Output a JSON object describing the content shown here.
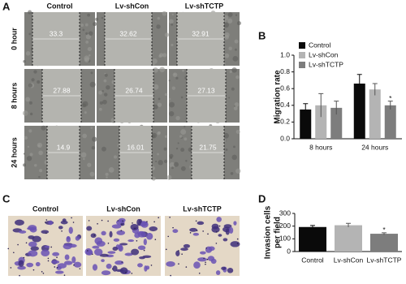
{
  "panel_a": {
    "label": "A",
    "columns": [
      "Control",
      "Lv-shCon",
      "Lv-shTCTP"
    ],
    "rows": [
      "0 hour",
      "8 hours",
      "24 hours"
    ],
    "widths": [
      [
        33.3,
        32.62,
        32.91
      ],
      [
        27.88,
        26.74,
        27.13
      ],
      [
        14.9,
        16.01,
        21.75
      ]
    ]
  },
  "panel_c": {
    "label": "C",
    "columns": [
      "Control",
      "Lv-shCon",
      "Lv-shTCTP"
    ]
  },
  "chart_data": [
    {
      "type": "bar",
      "panel_label": "B",
      "ylabel": "Migration rate",
      "categories": [
        "8 hours",
        "24 hours"
      ],
      "series": [
        {
          "name": "Control",
          "color": "#0a0a0a",
          "values": [
            0.35,
            0.66
          ],
          "errors": [
            0.07,
            0.11
          ]
        },
        {
          "name": "Lv-shCon",
          "color": "#b4b4b4",
          "values": [
            0.4,
            0.59
          ],
          "errors": [
            0.14,
            0.07
          ]
        },
        {
          "name": "Lv-shTCTP",
          "color": "#7d7d7d",
          "values": [
            0.37,
            0.4
          ],
          "errors": [
            0.08,
            0.05
          ]
        }
      ],
      "ylim": [
        0,
        1.0
      ],
      "yticks": [
        {
          "value": 0,
          "label": "0.0"
        },
        0.2,
        0.4,
        0.6,
        0.8,
        {
          "value": 1.0,
          "label": "1.0"
        }
      ],
      "legend": "upper left",
      "annotations": [
        "*"
      ]
    },
    {
      "type": "bar",
      "panel_label": "D",
      "ylabel": [
        "Invasion cells",
        "per field"
      ],
      "categories": [
        "Control",
        "Lv-shCon",
        "Lv-shTCTP"
      ],
      "values": [
        193,
        207,
        140
      ],
      "errors": [
        12,
        15,
        8
      ],
      "colors": [
        "#0a0a0a",
        "#b4b4b4",
        "#7d7d7d"
      ],
      "ylim": [
        0,
        300
      ],
      "yticks": [
        0,
        100,
        200,
        300
      ],
      "annotations": [
        "*"
      ]
    }
  ]
}
